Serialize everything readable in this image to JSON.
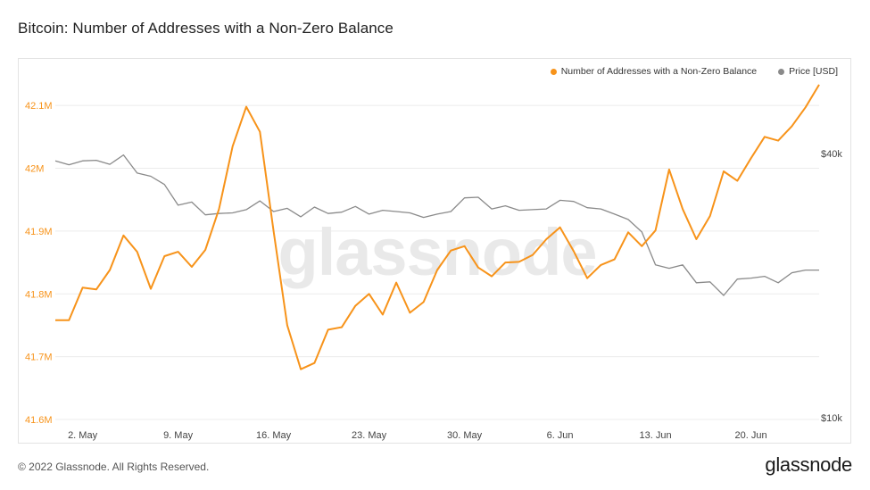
{
  "title": "Bitcoin: Number of Addresses with a Non-Zero Balance",
  "footer": "© 2022 Glassnode. All Rights Reserved.",
  "brand": "glassnode",
  "watermark": "glassnode",
  "colors": {
    "addresses": "#f7931a",
    "price": "#8a8a8a",
    "grid": "#ececec"
  },
  "legend": [
    {
      "label": "Number of Addresses with a Non-Zero Balance",
      "color": "#f7931a"
    },
    {
      "label": "Price [USD]",
      "color": "#8a8a8a"
    }
  ],
  "chart_data": {
    "type": "line",
    "x_ticks": [
      "2. May",
      "9. May",
      "16. May",
      "23. May",
      "30. May",
      "6. Jun",
      "13. Jun",
      "20. Jun"
    ],
    "y_left_ticks": [
      "41.6M",
      "41.7M",
      "41.8M",
      "41.9M",
      "42M",
      "42.1M"
    ],
    "y_left_values": [
      41.6,
      41.7,
      41.8,
      41.9,
      42.0,
      42.1
    ],
    "y_left_range": [
      41.6,
      42.14
    ],
    "y_right_ticks": [
      "$10k",
      "$40k"
    ],
    "y_right_values": [
      10000,
      40000
    ],
    "y_right_log": true,
    "grid": true,
    "legend_position": "top-right",
    "x_start": "2022-04-30",
    "series": [
      {
        "name": "Number of Addresses with a Non-Zero Balance",
        "axis": "left",
        "unit": "M",
        "values": [
          41.758,
          41.758,
          41.81,
          41.807,
          41.838,
          41.893,
          41.867,
          41.808,
          41.86,
          41.867,
          41.843,
          41.87,
          41.935,
          42.035,
          42.098,
          42.058,
          41.9,
          41.75,
          41.68,
          41.69,
          41.743,
          41.747,
          41.781,
          41.8,
          41.767,
          41.818,
          41.77,
          41.787,
          41.838,
          41.869,
          41.876,
          41.842,
          41.828,
          41.85,
          41.851,
          41.862,
          41.887,
          41.906,
          41.868,
          41.825,
          41.846,
          41.855,
          41.898,
          41.876,
          41.901,
          41.998,
          41.935,
          41.887,
          41.924,
          41.995,
          41.98,
          42.016,
          42.05,
          42.044,
          42.067,
          42.097,
          42.133
        ]
      },
      {
        "name": "Price [USD]",
        "axis": "right",
        "unit": "USD",
        "values": [
          38500,
          37700,
          38500,
          38600,
          37800,
          39700,
          36100,
          35500,
          34000,
          30500,
          31000,
          29000,
          29200,
          29300,
          29800,
          31200,
          29500,
          30000,
          28700,
          30200,
          29200,
          29400,
          30300,
          29100,
          29700,
          29500,
          29300,
          28600,
          29100,
          29500,
          31700,
          31800,
          29900,
          30400,
          29700,
          29800,
          29900,
          31300,
          31100,
          30100,
          29900,
          29100,
          28300,
          26500,
          22300,
          21900,
          22300,
          20300,
          20400,
          19000,
          20700,
          20800,
          21000,
          20300,
          21400,
          21700,
          21700
        ]
      }
    ]
  }
}
